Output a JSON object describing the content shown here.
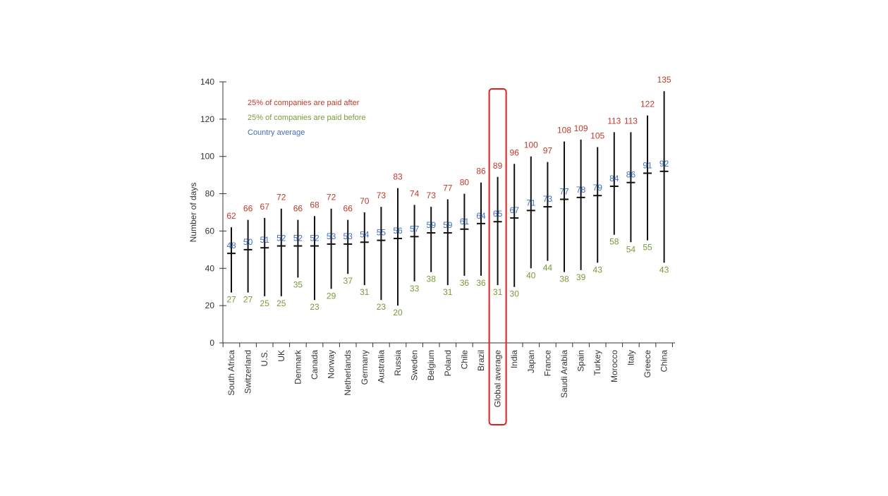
{
  "chart_data": {
    "type": "range",
    "ylabel": "Number of days",
    "ylim": [
      0,
      140
    ],
    "yticks": [
      0,
      20,
      40,
      60,
      80,
      100,
      120,
      140
    ],
    "legend": [
      {
        "key": "upper",
        "label": "25% of companies are paid after",
        "color": "#c0392b"
      },
      {
        "key": "lower",
        "label": "25% of companies are paid before",
        "color": "#7a9a3a"
      },
      {
        "key": "avg",
        "label": "Country average",
        "color": "#3f6fbf"
      }
    ],
    "highlight": "Global average",
    "highlight_color": "#e02020",
    "categories": [
      "South Africa",
      "Switzerland",
      "U.S.",
      "UK",
      "Denmark",
      "Canada",
      "Norway",
      "Netherlands",
      "Germany",
      "Australia",
      "Russia",
      "Sweden",
      "Belgium",
      "Poland",
      "Chile",
      "Brazil",
      "Global average",
      "India",
      "Japan",
      "France",
      "Saudi Arabia",
      "Spain",
      "Turkey",
      "Morocco",
      "Italy",
      "Greece",
      "China"
    ],
    "series": [
      {
        "name": "25% of companies are paid after",
        "values": [
          62,
          66,
          67,
          72,
          66,
          68,
          72,
          66,
          70,
          73,
          83,
          74,
          73,
          77,
          80,
          86,
          89,
          96,
          100,
          97,
          108,
          109,
          105,
          113,
          113,
          122,
          135
        ]
      },
      {
        "name": "Country average",
        "values": [
          48,
          50,
          51,
          52,
          52,
          52,
          53,
          53,
          54,
          55,
          56,
          57,
          59,
          59,
          61,
          64,
          65,
          67,
          71,
          73,
          77,
          78,
          79,
          84,
          86,
          91,
          92
        ]
      },
      {
        "name": "25% of companies are paid before",
        "values": [
          27,
          27,
          25,
          25,
          35,
          23,
          29,
          37,
          31,
          23,
          20,
          33,
          38,
          31,
          36,
          36,
          31,
          30,
          40,
          44,
          38,
          39,
          43,
          58,
          54,
          55,
          43
        ]
      }
    ]
  }
}
